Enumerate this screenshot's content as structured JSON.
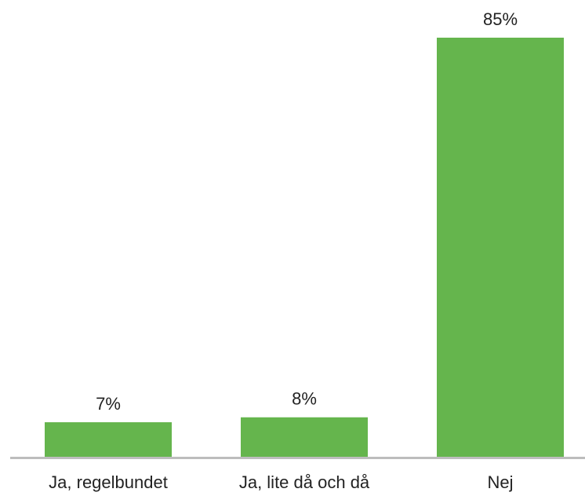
{
  "chart_data": {
    "type": "bar",
    "categories": [
      "Ja, regelbundet",
      "Ja, lite då och då",
      "Nej"
    ],
    "values": [
      7,
      8,
      85
    ],
    "value_labels": [
      "7%",
      "8%",
      "85%"
    ],
    "color": "#65b54d"
  }
}
